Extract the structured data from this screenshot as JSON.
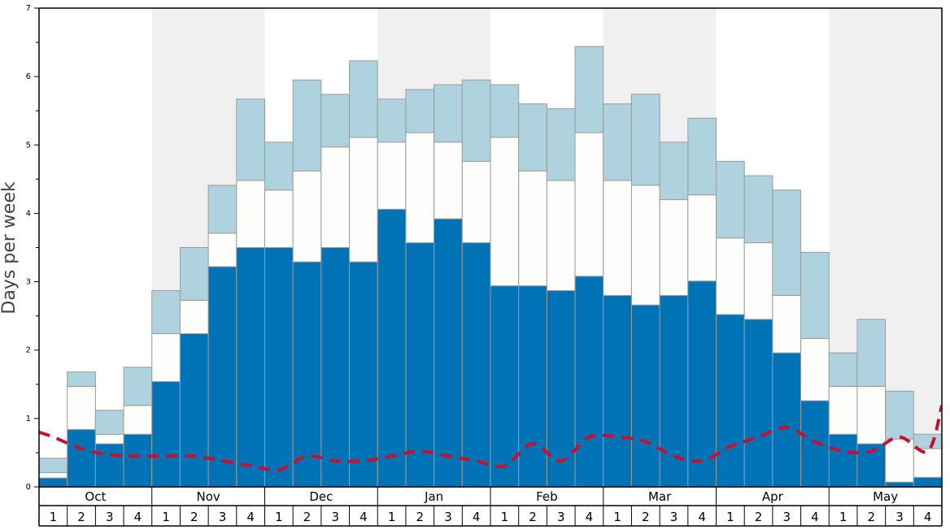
{
  "chart_data": {
    "type": "bar",
    "stacked": true,
    "ylabel": "Days per week",
    "ylim": [
      0,
      7
    ],
    "yticks": [
      "0",
      "1",
      "2",
      "3",
      "4",
      "5",
      "6",
      "7"
    ],
    "grid": false,
    "months": [
      "Oct",
      "Nov",
      "Dec",
      "Jan",
      "Feb",
      "Mar",
      "Apr",
      "May"
    ],
    "shaded_months": [
      "Nov",
      "Jan",
      "Mar",
      "May"
    ],
    "week_labels": [
      "1",
      "2",
      "3",
      "4"
    ],
    "categories": [
      "Oct 1",
      "Oct 2",
      "Oct 3",
      "Oct 4",
      "Nov 1",
      "Nov 2",
      "Nov 3",
      "Nov 4",
      "Dec 1",
      "Dec 2",
      "Dec 3",
      "Dec 4",
      "Jan 1",
      "Jan 2",
      "Jan 3",
      "Jan 4",
      "Feb 1",
      "Feb 2",
      "Feb 3",
      "Feb 4",
      "Mar 1",
      "Mar 2",
      "Mar 3",
      "Mar 4",
      "Apr 1",
      "Apr 2",
      "Apr 3",
      "Apr 4",
      "May 1",
      "May 2",
      "May 3",
      "May 4"
    ],
    "series": [
      {
        "values": [
          0.13,
          0.84,
          0.63,
          0.77,
          1.54,
          2.24,
          3.22,
          3.5,
          3.5,
          3.29,
          3.5,
          3.29,
          4.06,
          3.57,
          3.92,
          3.57,
          2.94,
          2.94,
          2.87,
          3.08,
          2.8,
          2.66,
          2.8,
          3.01,
          2.52,
          2.45,
          1.96,
          1.26,
          0.77,
          0.63,
          0.07,
          0.14
        ]
      },
      {
        "values": [
          0.08,
          0.63,
          0.14,
          0.42,
          0.7,
          0.49,
          0.49,
          0.98,
          0.84,
          1.33,
          1.47,
          1.82,
          0.98,
          1.61,
          1.12,
          1.19,
          2.17,
          1.68,
          1.61,
          2.1,
          1.68,
          1.75,
          1.4,
          1.26,
          1.12,
          1.12,
          0.84,
          0.91,
          0.7,
          0.84,
          0.63,
          0.42
        ]
      },
      {
        "values": [
          0.21,
          0.21,
          0.35,
          0.56,
          0.63,
          0.77,
          0.7,
          1.19,
          0.7,
          1.33,
          0.77,
          1.12,
          0.63,
          0.63,
          0.84,
          1.19,
          0.77,
          0.98,
          1.05,
          1.26,
          1.12,
          1.33,
          0.84,
          1.12,
          1.12,
          0.98,
          1.54,
          1.26,
          0.49,
          0.98,
          0.7,
          0.21
        ]
      }
    ],
    "line": {
      "style": "dashed",
      "x": [
        -0.5,
        0,
        1,
        2,
        3,
        4,
        5,
        6,
        7,
        8,
        9,
        10,
        11,
        12,
        13,
        14,
        15,
        16,
        17,
        18,
        19,
        20,
        21,
        22,
        23,
        24,
        25,
        26,
        27,
        28,
        29,
        30,
        31,
        31.5
      ],
      "values": [
        0.8,
        0.73,
        0.56,
        0.47,
        0.45,
        0.45,
        0.45,
        0.38,
        0.31,
        0.25,
        0.45,
        0.38,
        0.38,
        0.45,
        0.52,
        0.45,
        0.38,
        0.31,
        0.63,
        0.38,
        0.73,
        0.73,
        0.66,
        0.45,
        0.38,
        0.59,
        0.73,
        0.87,
        0.66,
        0.52,
        0.52,
        0.73,
        0.52,
        1.19
      ]
    },
    "colors": {
      "bottom": "#0073b6",
      "middle": "#fdfdfb",
      "top": "#aed3df",
      "bar_border": "#9b9b9b",
      "shade": "#f0f0f0",
      "line": "#c8102e",
      "axis": "#000000"
    }
  }
}
